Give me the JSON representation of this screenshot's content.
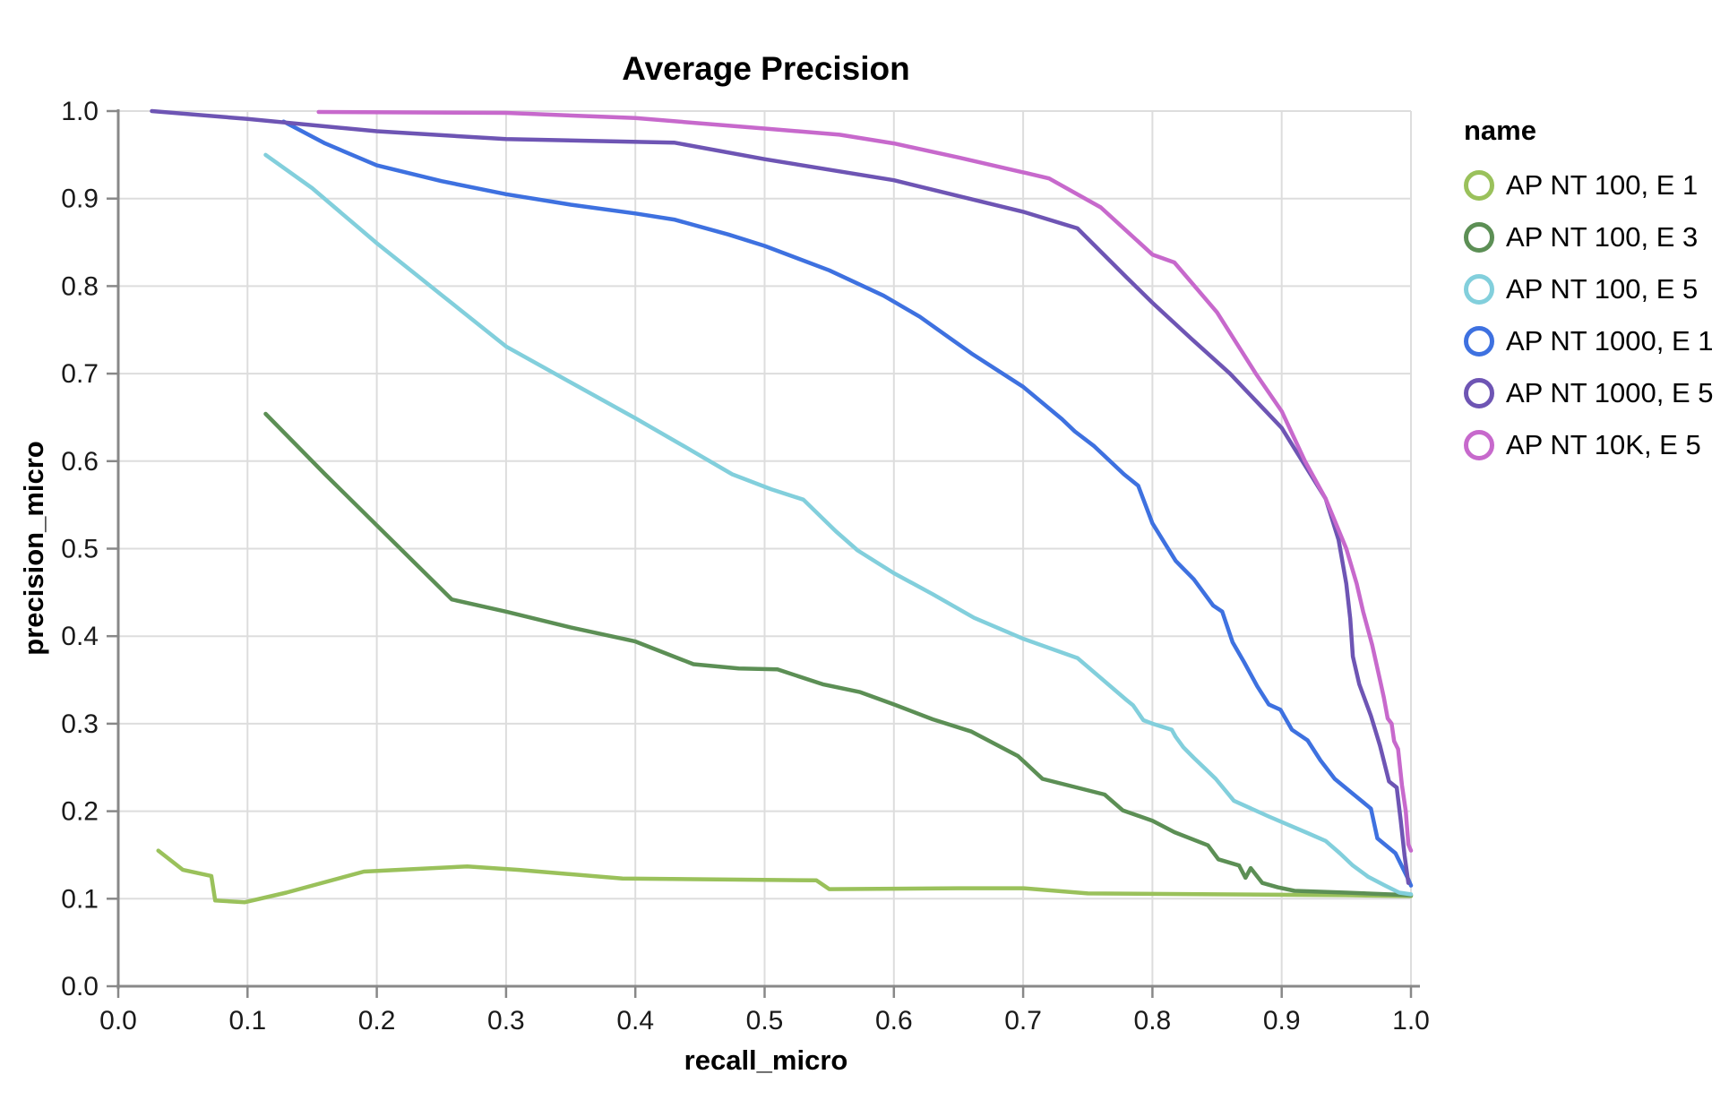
{
  "chart_data": {
    "type": "line",
    "title": "Average Precision",
    "xlabel": "recall_micro",
    "ylabel": "precision_micro",
    "xlim": [
      0.0,
      1.0
    ],
    "ylim": [
      0.0,
      1.0
    ],
    "grid": true,
    "legend_position": "right",
    "legend_title": "name",
    "x_tick_labels": [
      "0.0",
      "0.1",
      "0.2",
      "0.3",
      "0.4",
      "0.5",
      "0.6",
      "0.7",
      "0.8",
      "0.9",
      "1.0"
    ],
    "y_tick_labels": [
      "0.0",
      "0.1",
      "0.2",
      "0.3",
      "0.4",
      "0.5",
      "0.6",
      "0.7",
      "0.8",
      "0.9",
      "1.0"
    ],
    "series": [
      {
        "name": "AP NT 100, E 1",
        "color": "#9ac15b",
        "points": [
          [
            0.031,
            0.155
          ],
          [
            0.05,
            0.133
          ],
          [
            0.072,
            0.126
          ],
          [
            0.075,
            0.098
          ],
          [
            0.098,
            0.096
          ],
          [
            0.13,
            0.107
          ],
          [
            0.19,
            0.131
          ],
          [
            0.27,
            0.137
          ],
          [
            0.31,
            0.133
          ],
          [
            0.39,
            0.123
          ],
          [
            0.54,
            0.121
          ],
          [
            0.55,
            0.111
          ],
          [
            0.65,
            0.112
          ],
          [
            0.7,
            0.112
          ],
          [
            0.75,
            0.106
          ],
          [
            0.85,
            0.105
          ],
          [
            0.95,
            0.104
          ],
          [
            1.0,
            0.103
          ]
        ]
      },
      {
        "name": "AP NT 100, E 3",
        "color": "#5c8f55",
        "points": [
          [
            0.114,
            0.654
          ],
          [
            0.16,
            0.585
          ],
          [
            0.258,
            0.442
          ],
          [
            0.3,
            0.428
          ],
          [
            0.35,
            0.41
          ],
          [
            0.4,
            0.394
          ],
          [
            0.445,
            0.368
          ],
          [
            0.48,
            0.363
          ],
          [
            0.51,
            0.362
          ],
          [
            0.545,
            0.345
          ],
          [
            0.574,
            0.336
          ],
          [
            0.6,
            0.322
          ],
          [
            0.63,
            0.305
          ],
          [
            0.66,
            0.291
          ],
          [
            0.696,
            0.263
          ],
          [
            0.715,
            0.237
          ],
          [
            0.763,
            0.219
          ],
          [
            0.777,
            0.201
          ],
          [
            0.8,
            0.189
          ],
          [
            0.817,
            0.176
          ],
          [
            0.843,
            0.161
          ],
          [
            0.851,
            0.145
          ],
          [
            0.867,
            0.138
          ],
          [
            0.872,
            0.124
          ],
          [
            0.876,
            0.135
          ],
          [
            0.885,
            0.118
          ],
          [
            0.897,
            0.113
          ],
          [
            0.91,
            0.109
          ],
          [
            0.95,
            0.107
          ],
          [
            1.0,
            0.104
          ]
        ]
      },
      {
        "name": "AP NT 100, E 5",
        "color": "#82cfdc",
        "points": [
          [
            0.114,
            0.95
          ],
          [
            0.15,
            0.912
          ],
          [
            0.2,
            0.849
          ],
          [
            0.25,
            0.79
          ],
          [
            0.3,
            0.731
          ],
          [
            0.35,
            0.69
          ],
          [
            0.4,
            0.649
          ],
          [
            0.44,
            0.615
          ],
          [
            0.475,
            0.585
          ],
          [
            0.505,
            0.568
          ],
          [
            0.53,
            0.556
          ],
          [
            0.555,
            0.52
          ],
          [
            0.572,
            0.498
          ],
          [
            0.6,
            0.472
          ],
          [
            0.63,
            0.448
          ],
          [
            0.662,
            0.421
          ],
          [
            0.7,
            0.397
          ],
          [
            0.742,
            0.375
          ],
          [
            0.78,
            0.327
          ],
          [
            0.785,
            0.321
          ],
          [
            0.793,
            0.304
          ],
          [
            0.8,
            0.3
          ],
          [
            0.815,
            0.293
          ],
          [
            0.818,
            0.285
          ],
          [
            0.824,
            0.273
          ],
          [
            0.832,
            0.261
          ],
          [
            0.842,
            0.247
          ],
          [
            0.849,
            0.237
          ],
          [
            0.863,
            0.212
          ],
          [
            0.89,
            0.194
          ],
          [
            0.92,
            0.175
          ],
          [
            0.934,
            0.166
          ],
          [
            0.945,
            0.152
          ],
          [
            0.955,
            0.138
          ],
          [
            0.967,
            0.125
          ],
          [
            0.98,
            0.115
          ],
          [
            0.991,
            0.107
          ],
          [
            1.0,
            0.105
          ]
        ]
      },
      {
        "name": "AP NT 1000, E 1",
        "color": "#3e71e0",
        "points": [
          [
            0.128,
            0.988
          ],
          [
            0.16,
            0.963
          ],
          [
            0.2,
            0.938
          ],
          [
            0.25,
            0.92
          ],
          [
            0.3,
            0.905
          ],
          [
            0.35,
            0.893
          ],
          [
            0.4,
            0.883
          ],
          [
            0.43,
            0.876
          ],
          [
            0.472,
            0.859
          ],
          [
            0.5,
            0.846
          ],
          [
            0.55,
            0.818
          ],
          [
            0.592,
            0.789
          ],
          [
            0.62,
            0.765
          ],
          [
            0.66,
            0.723
          ],
          [
            0.7,
            0.685
          ],
          [
            0.73,
            0.648
          ],
          [
            0.74,
            0.634
          ],
          [
            0.755,
            0.617
          ],
          [
            0.778,
            0.585
          ],
          [
            0.789,
            0.572
          ],
          [
            0.8,
            0.529
          ],
          [
            0.818,
            0.486
          ],
          [
            0.832,
            0.465
          ],
          [
            0.847,
            0.435
          ],
          [
            0.854,
            0.428
          ],
          [
            0.862,
            0.393
          ],
          [
            0.871,
            0.37
          ],
          [
            0.881,
            0.343
          ],
          [
            0.89,
            0.322
          ],
          [
            0.899,
            0.316
          ],
          [
            0.908,
            0.293
          ],
          [
            0.92,
            0.281
          ],
          [
            0.93,
            0.258
          ],
          [
            0.941,
            0.237
          ],
          [
            0.955,
            0.22
          ],
          [
            0.969,
            0.203
          ],
          [
            0.974,
            0.169
          ],
          [
            0.988,
            0.152
          ],
          [
            0.998,
            0.122
          ],
          [
            1.0,
            0.115
          ]
        ]
      },
      {
        "name": "AP NT 1000, E 5",
        "color": "#6e55b4",
        "points": [
          [
            0.026,
            1.0
          ],
          [
            0.1,
            0.991
          ],
          [
            0.2,
            0.977
          ],
          [
            0.3,
            0.968
          ],
          [
            0.43,
            0.964
          ],
          [
            0.5,
            0.945
          ],
          [
            0.6,
            0.921
          ],
          [
            0.7,
            0.885
          ],
          [
            0.742,
            0.866
          ],
          [
            0.78,
            0.81
          ],
          [
            0.8,
            0.781
          ],
          [
            0.83,
            0.74
          ],
          [
            0.86,
            0.7
          ],
          [
            0.9,
            0.638
          ],
          [
            0.913,
            0.607
          ],
          [
            0.934,
            0.557
          ],
          [
            0.944,
            0.51
          ],
          [
            0.95,
            0.46
          ],
          [
            0.953,
            0.42
          ],
          [
            0.955,
            0.377
          ],
          [
            0.96,
            0.345
          ],
          [
            0.969,
            0.309
          ],
          [
            0.976,
            0.275
          ],
          [
            0.983,
            0.234
          ],
          [
            0.989,
            0.227
          ],
          [
            0.992,
            0.19
          ],
          [
            0.995,
            0.15
          ],
          [
            0.998,
            0.118
          ]
        ]
      },
      {
        "name": "AP NT 10K, E 5",
        "color": "#c769cc",
        "points": [
          [
            0.155,
            0.999
          ],
          [
            0.3,
            0.998
          ],
          [
            0.4,
            0.992
          ],
          [
            0.5,
            0.98
          ],
          [
            0.558,
            0.973
          ],
          [
            0.6,
            0.963
          ],
          [
            0.65,
            0.947
          ],
          [
            0.7,
            0.93
          ],
          [
            0.72,
            0.923
          ],
          [
            0.76,
            0.89
          ],
          [
            0.8,
            0.836
          ],
          [
            0.817,
            0.827
          ],
          [
            0.85,
            0.77
          ],
          [
            0.88,
            0.7
          ],
          [
            0.9,
            0.657
          ],
          [
            0.918,
            0.6
          ],
          [
            0.934,
            0.557
          ],
          [
            0.95,
            0.5
          ],
          [
            0.958,
            0.46
          ],
          [
            0.963,
            0.428
          ],
          [
            0.97,
            0.39
          ],
          [
            0.976,
            0.35
          ],
          [
            0.979,
            0.33
          ],
          [
            0.982,
            0.306
          ],
          [
            0.985,
            0.3
          ],
          [
            0.987,
            0.28
          ],
          [
            0.99,
            0.271
          ],
          [
            0.993,
            0.23
          ],
          [
            0.996,
            0.2
          ],
          [
            0.998,
            0.162
          ],
          [
            1.0,
            0.155
          ]
        ]
      }
    ],
    "style": {
      "grid_color": "#dddddd",
      "axis_color": "#888888",
      "tick_label_color": "#1a1a1a"
    }
  }
}
